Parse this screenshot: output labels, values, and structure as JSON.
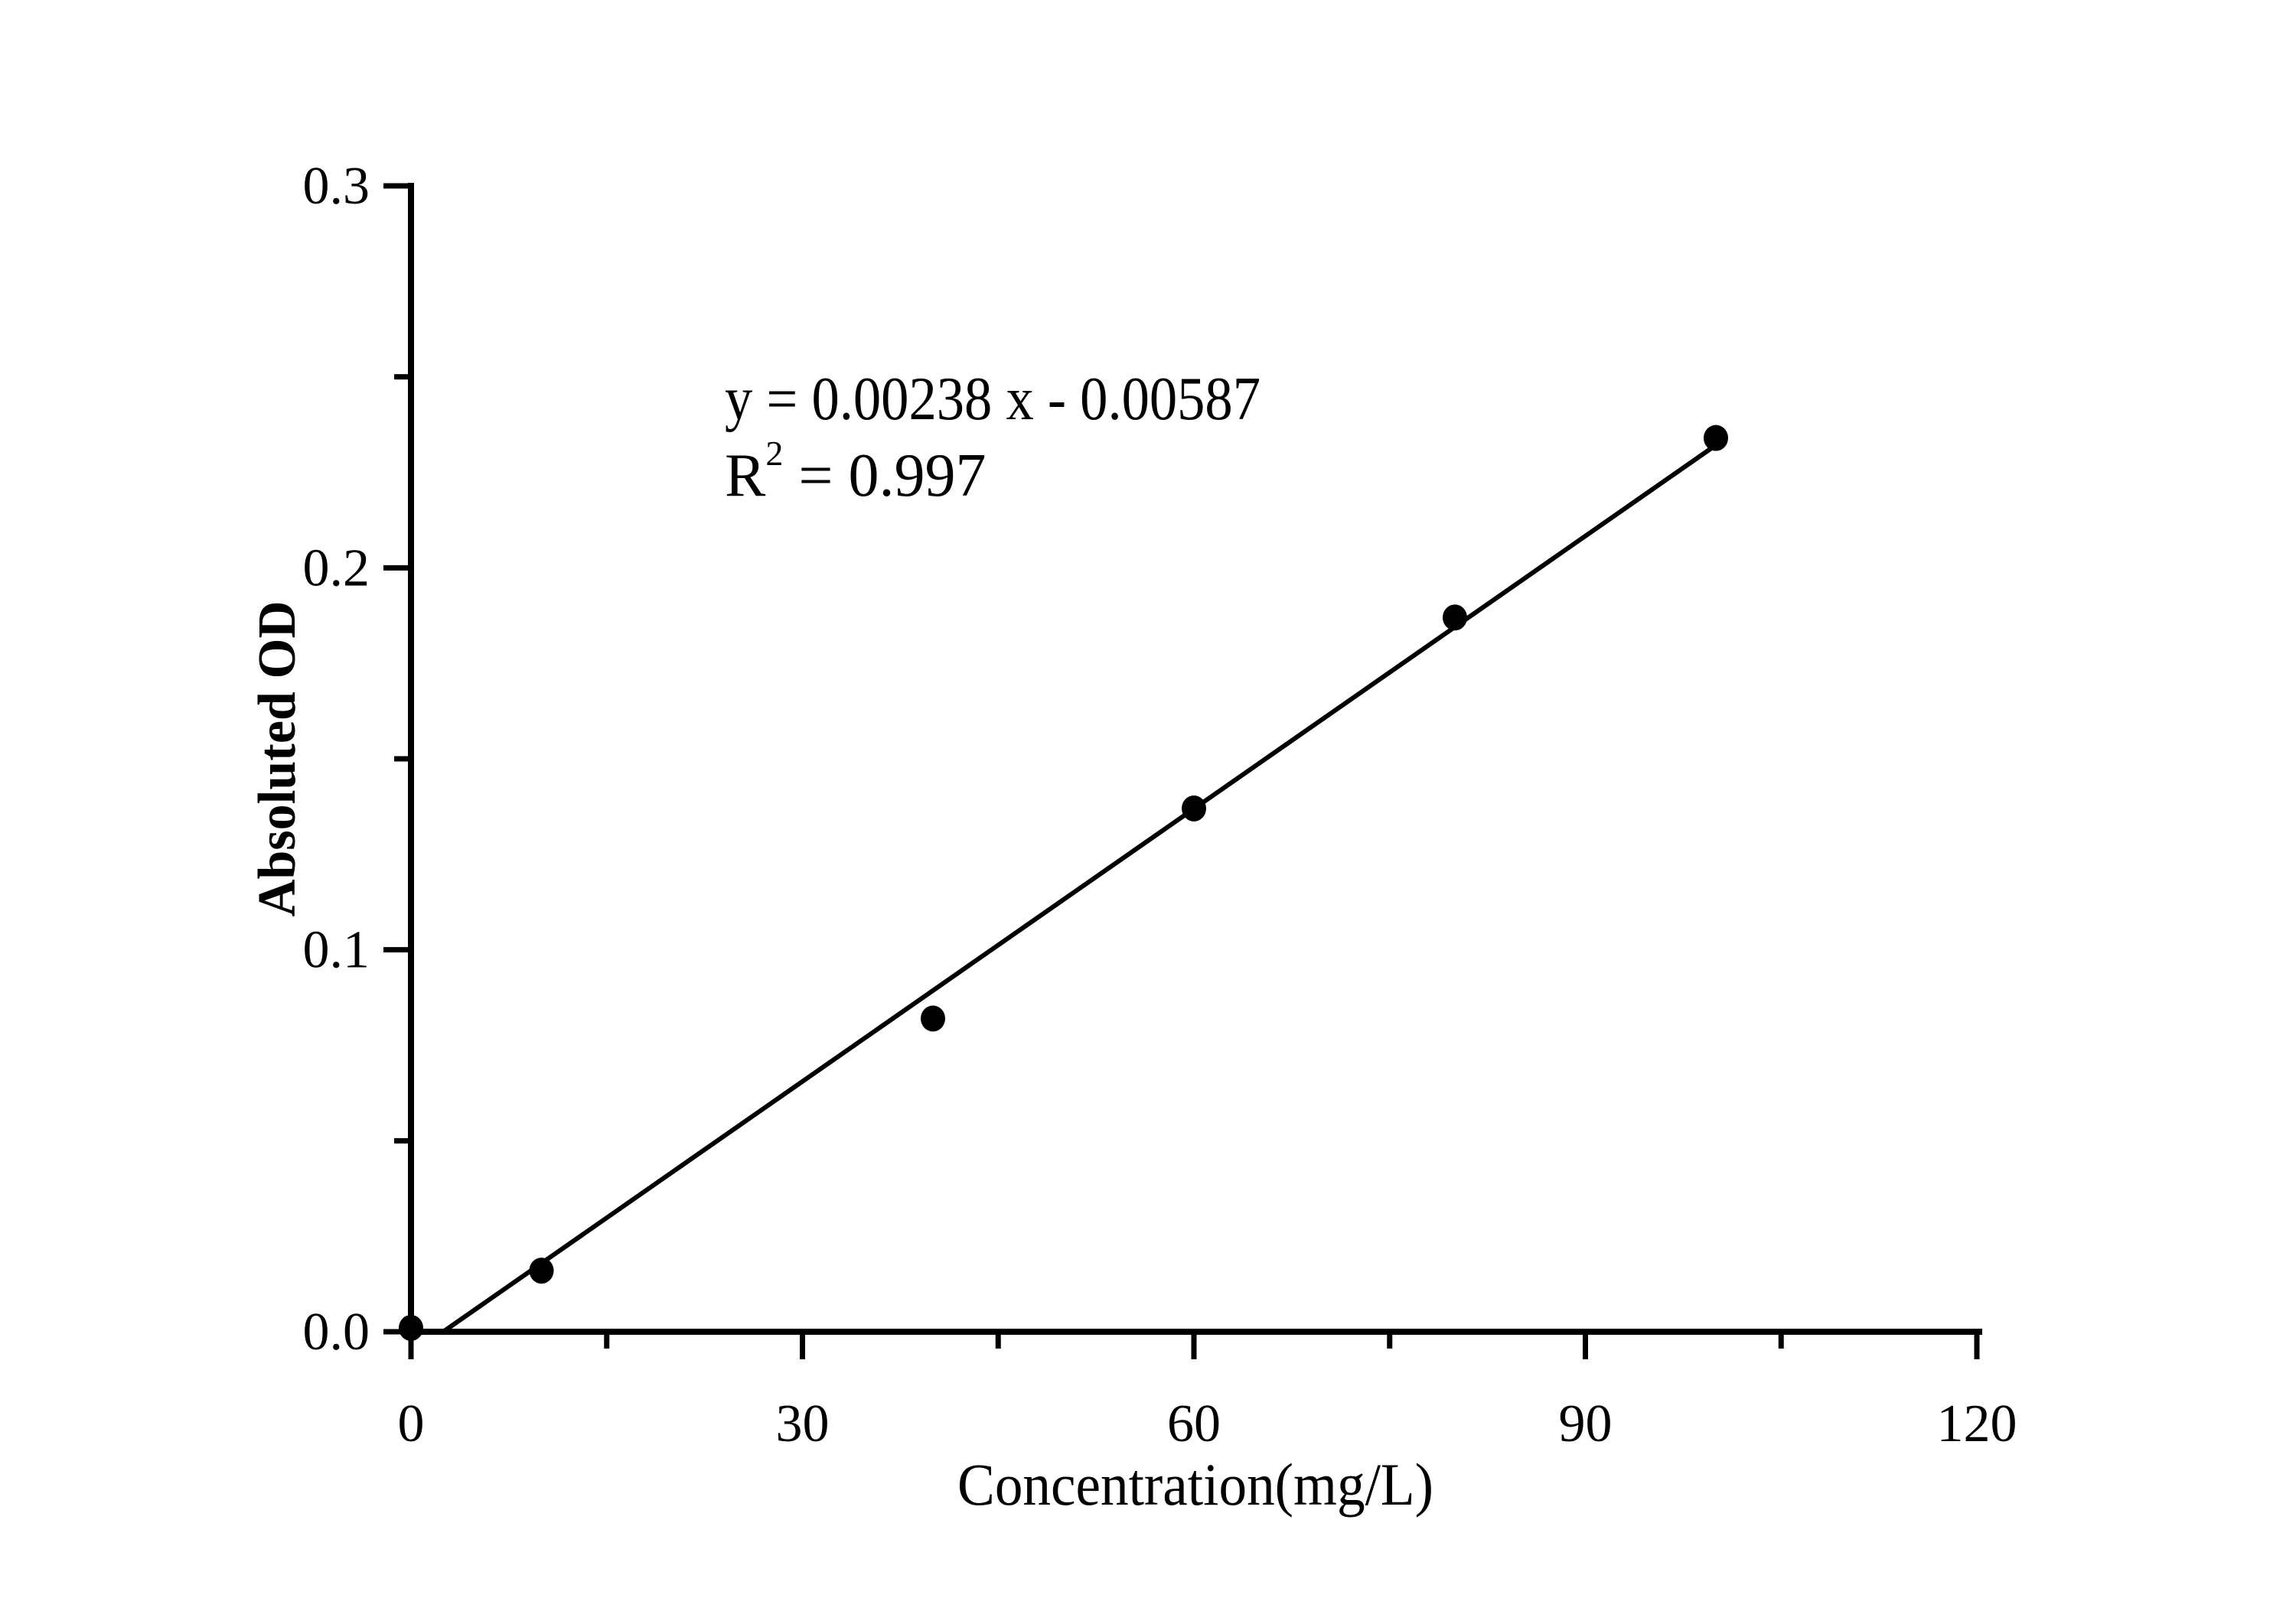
{
  "chart_data": {
    "type": "scatter",
    "title": "",
    "xlabel": "Concentration(mg/L)",
    "ylabel": "Absoluted OD",
    "x": [
      0,
      10,
      40,
      60,
      80,
      100
    ],
    "y": [
      0.001,
      0.016,
      0.082,
      0.137,
      0.187,
      0.234
    ],
    "xlim": [
      0,
      120
    ],
    "ylim": [
      0,
      0.3
    ],
    "x_major_ticks": [
      0,
      30,
      60,
      90,
      120
    ],
    "x_minor_ticks": [
      15,
      45,
      75,
      105
    ],
    "x_tick_labels": [
      "0",
      "30",
      "60",
      "90",
      "120"
    ],
    "y_major_ticks": [
      0,
      0.1,
      0.2,
      0.3
    ],
    "y_minor_ticks": [
      0.05,
      0.15,
      0.25
    ],
    "y_tick_labels": [
      "0.0",
      "0.1",
      "0.2",
      "0.3"
    ],
    "grid": false,
    "legend": null,
    "fit_line": {
      "slope": 0.00238,
      "intercept": -0.00587,
      "r_squared": 0.997,
      "equation_label": "y = 0.00238 x - 0.00587",
      "r_squared_label_base": "R",
      "r_squared_label_superscript": "2",
      "r_squared_label_rest": " = 0.997",
      "x_end": 100.2
    },
    "marker": {
      "shape": "circle",
      "color": "#000000"
    },
    "line_color": "#000000",
    "axis_color": "#000000",
    "text_color": "#000000",
    "background_color": "#ffffff"
  }
}
